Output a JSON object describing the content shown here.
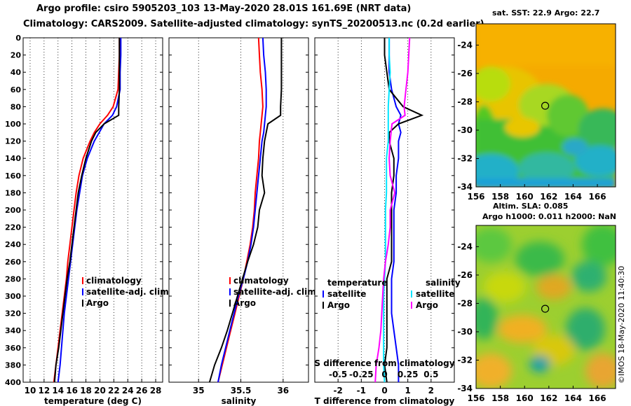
{
  "title_line1": "Argo profile: csiro 5905203_103 13-May-2020 28.01S 161.69E (NRT data)",
  "title_line2": "Climatology: CARS2009. Satellite-adjusted climatology: synTS_20200513.nc (0.2d earlier)",
  "sst_title": "sat. SST: 22.9 Argo: 22.7",
  "sla_title_1": "Altim. SLA: 0.085",
  "sla_title_2": "Argo h1000: 0.011 h2000: NaN",
  "credit": "©IMOS 18-May-2020 11:40:30",
  "colors": {
    "climatology": "#ff0000",
    "satellite": "#0000ff",
    "argo": "#000000",
    "sat_salinity": "#00e5ff",
    "salinity_diff": "#ff00ff"
  },
  "chart_data": [
    {
      "type": "line",
      "xlabel": "temperature (deg C)",
      "ylabel": "",
      "xlim": [
        9,
        29
      ],
      "ylim": [
        400,
        0
      ],
      "xticks": [
        "10",
        "12",
        "14",
        "16",
        "18",
        "20",
        "22",
        "24",
        "26",
        "28"
      ],
      "yticks": [
        "0",
        "20",
        "40",
        "60",
        "80",
        "100",
        "120",
        "140",
        "160",
        "180",
        "200",
        "220",
        "240",
        "260",
        "280",
        "300",
        "320",
        "340",
        "360",
        "380",
        "400"
      ],
      "depth": [
        0,
        20,
        40,
        60,
        80,
        90,
        100,
        110,
        120,
        140,
        160,
        180,
        200,
        220,
        240,
        260,
        280,
        300,
        320,
        340,
        360,
        380,
        400
      ],
      "series": [
        {
          "name": "climatology",
          "values": [
            22.8,
            22.8,
            22.7,
            22.6,
            21.9,
            21.1,
            20.0,
            19.2,
            18.6,
            17.6,
            17.0,
            16.6,
            16.3,
            16.0,
            15.7,
            15.4,
            15.2,
            14.9,
            14.6,
            14.3,
            14.0,
            13.7,
            13.4
          ]
        },
        {
          "name": "satellite-adj. clim.",
          "values": [
            23.0,
            23.0,
            22.9,
            22.9,
            22.4,
            21.8,
            20.6,
            19.9,
            19.2,
            18.2,
            17.5,
            17.1,
            16.7,
            16.4,
            16.1,
            15.8,
            15.5,
            15.2,
            14.9,
            14.7,
            14.5,
            14.3,
            14.0
          ]
        },
        {
          "name": "Argo",
          "values": [
            22.8,
            22.8,
            22.8,
            22.8,
            22.7,
            22.7,
            20.6,
            19.4,
            18.8,
            18.0,
            17.4,
            16.9,
            16.6,
            16.3,
            16.0,
            15.7,
            15.3,
            15.0,
            14.7,
            14.4,
            14.1,
            13.7,
            13.5
          ]
        }
      ],
      "legend": [
        "climatology",
        "satellite-adj. clim.",
        "Argo"
      ]
    },
    {
      "type": "line",
      "xlabel": "salinity",
      "ylabel": "",
      "xlim": [
        34.65,
        36.3
      ],
      "ylim": [
        400,
        0
      ],
      "xticks": [
        "35",
        "35.5",
        "36"
      ],
      "depth": [
        0,
        20,
        40,
        60,
        80,
        90,
        100,
        110,
        120,
        140,
        160,
        180,
        200,
        220,
        240,
        260,
        280,
        300,
        320,
        340,
        360,
        380,
        400
      ],
      "series": [
        {
          "name": "climatology",
          "values": [
            35.71,
            35.72,
            35.73,
            35.75,
            35.76,
            35.75,
            35.74,
            35.73,
            35.72,
            35.71,
            35.69,
            35.67,
            35.66,
            35.64,
            35.61,
            35.57,
            35.53,
            35.48,
            35.43,
            35.38,
            35.33,
            35.28,
            35.23
          ]
        },
        {
          "name": "satellite-adj. clim.",
          "values": [
            35.76,
            35.77,
            35.79,
            35.8,
            35.8,
            35.79,
            35.78,
            35.77,
            35.75,
            35.73,
            35.71,
            35.69,
            35.67,
            35.65,
            35.62,
            35.58,
            35.53,
            35.47,
            35.42,
            35.37,
            35.32,
            35.27,
            35.23
          ]
        },
        {
          "name": "Argo",
          "values": [
            35.98,
            35.98,
            35.98,
            35.98,
            35.97,
            35.97,
            35.82,
            35.8,
            35.78,
            35.76,
            35.75,
            35.78,
            35.72,
            35.7,
            35.65,
            35.58,
            35.52,
            35.46,
            35.4,
            35.34,
            35.27,
            35.19,
            35.13
          ]
        }
      ],
      "legend": [
        "climatology",
        "satellite-adj. clim.",
        "Argo"
      ]
    },
    {
      "type": "line",
      "xlabel": "T difference from climatology",
      "top_axis_label": "S difference from climatology",
      "xlim": [
        -3,
        3
      ],
      "ylim": [
        400,
        0
      ],
      "xticks": [
        "-2",
        "-1",
        "0",
        "1",
        "2"
      ],
      "top_xticks": [
        "-0.5",
        "-0.25",
        "0",
        "0.25",
        "0.5"
      ],
      "depth": [
        0,
        20,
        40,
        60,
        80,
        90,
        100,
        110,
        120,
        140,
        160,
        180,
        200,
        220,
        240,
        260,
        280,
        300,
        320,
        340,
        360,
        380,
        400
      ],
      "series": [
        {
          "name": "temperature satellite",
          "values": [
            0.2,
            0.2,
            0.2,
            0.3,
            0.5,
            0.7,
            0.6,
            0.7,
            0.6,
            0.6,
            0.5,
            0.5,
            0.4,
            0.4,
            0.4,
            0.4,
            0.3,
            0.3,
            0.3,
            0.4,
            0.5,
            0.6,
            0.6
          ]
        },
        {
          "name": "temperature Argo",
          "values": [
            0.0,
            0.0,
            0.1,
            0.2,
            0.8,
            1.6,
            0.6,
            0.2,
            0.2,
            0.4,
            0.4,
            0.3,
            0.3,
            0.3,
            0.3,
            0.3,
            0.1,
            0.1,
            0.1,
            0.1,
            0.1,
            0.0,
            0.1
          ]
        },
        {
          "name": "salinity satellite",
          "values": [
            0.05,
            0.05,
            0.06,
            0.05,
            0.04,
            0.04,
            0.04,
            0.04,
            0.04,
            0.02,
            0.02,
            0.02,
            0.01,
            0.01,
            0.01,
            0.01,
            0.0,
            -0.01,
            -0.01,
            -0.01,
            -0.01,
            -0.01,
            0.0
          ]
        },
        {
          "name": "salinity Argo",
          "values": [
            0.27,
            0.26,
            0.25,
            0.23,
            0.21,
            0.22,
            0.08,
            0.07,
            0.06,
            0.05,
            0.06,
            0.11,
            0.06,
            0.06,
            0.04,
            0.01,
            -0.01,
            -0.02,
            -0.03,
            -0.04,
            -0.06,
            -0.09,
            -0.1
          ]
        }
      ],
      "legend_headers": [
        "temperature",
        "salinity"
      ],
      "legend": [
        "satellite",
        "Argo",
        "satellite",
        "Argo"
      ]
    },
    {
      "type": "heatmap",
      "title": "sat. SST: 22.9 Argo: 22.7",
      "xlim": [
        156,
        167.5
      ],
      "ylim": [
        -34,
        -22.5
      ],
      "xticks": [
        "156",
        "158",
        "160",
        "162",
        "164",
        "166"
      ],
      "yticks": [
        "-24",
        "-26",
        "-28",
        "-30",
        "-32",
        "-34"
      ],
      "marker": {
        "lon": 161.69,
        "lat": -28.01,
        "label": "Argo position"
      }
    },
    {
      "type": "heatmap",
      "title": "Altim. SLA: 0.085 / Argo h1000: 0.011 h2000: NaN",
      "xlim": [
        156,
        167.5
      ],
      "ylim": [
        -34,
        -22.5
      ],
      "xticks": [
        "156",
        "158",
        "160",
        "162",
        "164",
        "166"
      ],
      "yticks": [
        "-24",
        "-26",
        "-28",
        "-30",
        "-32",
        "-34"
      ],
      "marker": {
        "lon": 161.69,
        "lat": -28.01,
        "label": "Argo position"
      }
    }
  ]
}
